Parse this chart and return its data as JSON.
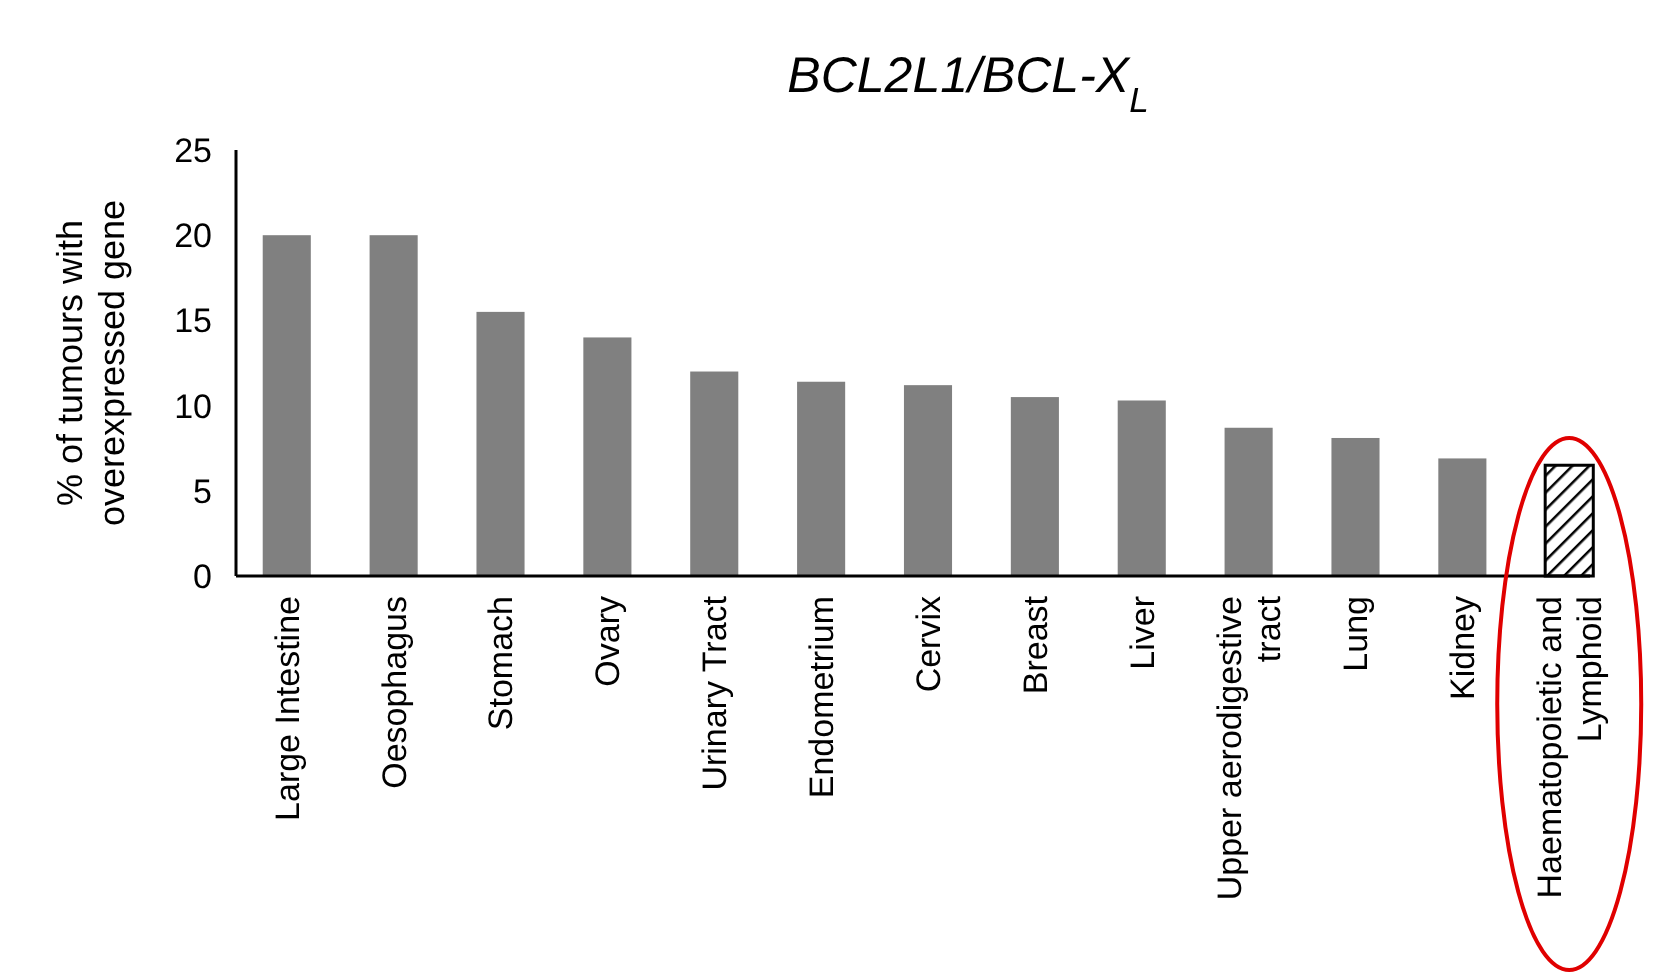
{
  "chart_data": {
    "type": "bar",
    "title": "BCL2L1/BCL-X$_{L}$",
    "ylabel": "% of tumours with overexpressed gene",
    "categories": [
      "Large Intestine",
      "Oesophagus",
      "Stomach",
      "Ovary",
      "Urinary Tract",
      "Endometrium",
      "Cervix",
      "Breast",
      "Liver",
      "Upper aerodigestive tract",
      "Lung",
      "Kidney",
      "Haematopoietic and Lymphoid"
    ],
    "values": [
      20,
      20,
      15.5,
      14,
      12,
      11.4,
      11.2,
      10.5,
      10.3,
      8.7,
      8.1,
      6.9,
      6.5
    ],
    "colors": [
      "#808080",
      "#808080",
      "#808080",
      "#808080",
      "#808080",
      "#808080",
      "#808080",
      "#808080",
      "#808080",
      "#808080",
      "#808080",
      "#808080",
      "#000000"
    ],
    "ylim": [
      0,
      25
    ],
    "yticks": [
      0,
      5,
      10,
      15,
      20,
      25
    ],
    "grid": false
  }
}
